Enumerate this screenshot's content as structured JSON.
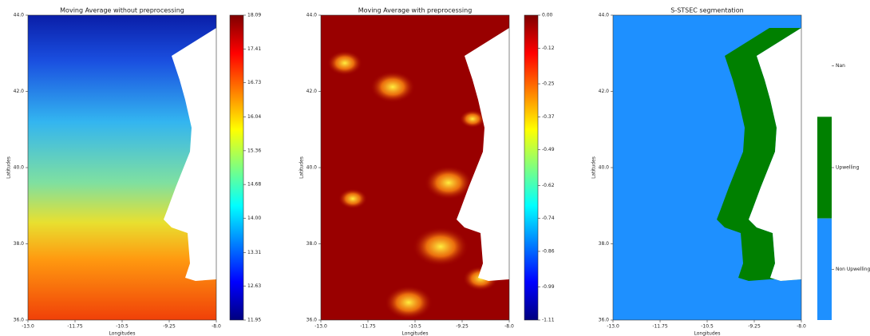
{
  "chart_data": [
    {
      "type": "heatmap",
      "title": "Moving Average without preprocessing",
      "xlabel": "Longitudes",
      "ylabel": "Latitudes",
      "xlim": [
        -13,
        -8
      ],
      "xticks": [
        {
          "value": -13,
          "label": "-13.0"
        },
        -11.75,
        -10.5,
        -9.25,
        {
          "value": -8,
          "label": "-8.0"
        }
      ],
      "ylim": [
        36,
        44
      ],
      "yticks": [
        {
          "value": 36,
          "label": "36.0"
        },
        {
          "value": 38,
          "label": "38.0"
        },
        {
          "value": 40,
          "label": "40.0"
        },
        {
          "value": 42,
          "label": "42.0"
        },
        {
          "value": 44,
          "label": "44.0"
        }
      ],
      "colormap": "jet",
      "clim": [
        11.95,
        18.09
      ],
      "cticks": [
        11.95,
        12.63,
        13.31,
        {
          "value": 14,
          "label": "14.00"
        },
        14.68,
        15.36,
        16.04,
        16.73,
        17.41,
        18.09
      ]
    },
    {
      "type": "heatmap",
      "title": "Moving Average with preprocessing",
      "xlabel": "Longitudes",
      "ylabel": "Latitudes",
      "xlim": [
        -13,
        -8
      ],
      "xticks": [
        {
          "value": -13,
          "label": "-13.0"
        },
        -11.75,
        -10.5,
        -9.25,
        {
          "value": -8,
          "label": "-8.0"
        }
      ],
      "ylim": [
        36,
        44
      ],
      "yticks": [
        {
          "value": 36,
          "label": "36.0"
        },
        {
          "value": 38,
          "label": "38.0"
        },
        {
          "value": 40,
          "label": "40.0"
        },
        {
          "value": 42,
          "label": "42.0"
        },
        {
          "value": 44,
          "label": "44.0"
        }
      ],
      "colormap": "jet",
      "clim": [
        -1.11,
        0
      ],
      "cticks": [
        -1.11,
        -0.99,
        -0.86,
        -0.74,
        -0.62,
        -0.49,
        -0.37,
        -0.25,
        -0.12,
        {
          "value": 0,
          "label": "0.00"
        }
      ]
    },
    {
      "type": "segmentation",
      "title": "S-STSEC segmentation",
      "xlabel": "Longitudes",
      "ylabel": "Latitudes",
      "xlim": [
        -13,
        -8
      ],
      "xticks": [
        {
          "value": -13,
          "label": "-13.0"
        },
        -11.75,
        -10.5,
        -9.25,
        {
          "value": -8,
          "label": "-8.0"
        }
      ],
      "ylim": [
        36,
        44
      ],
      "yticks": [
        {
          "value": 36,
          "label": "36.0"
        },
        {
          "value": 38,
          "label": "38.0"
        },
        {
          "value": 40,
          "label": "40.0"
        },
        {
          "value": 42,
          "label": "42.0"
        },
        {
          "value": 44,
          "label": "44.0"
        }
      ],
      "classes": [
        {
          "name": "Nan",
          "color": "#ffffff"
        },
        {
          "name": "Upwelling",
          "color": "#008000"
        },
        {
          "name": "Non Upwelling",
          "color": "#1e90ff"
        }
      ]
    }
  ]
}
